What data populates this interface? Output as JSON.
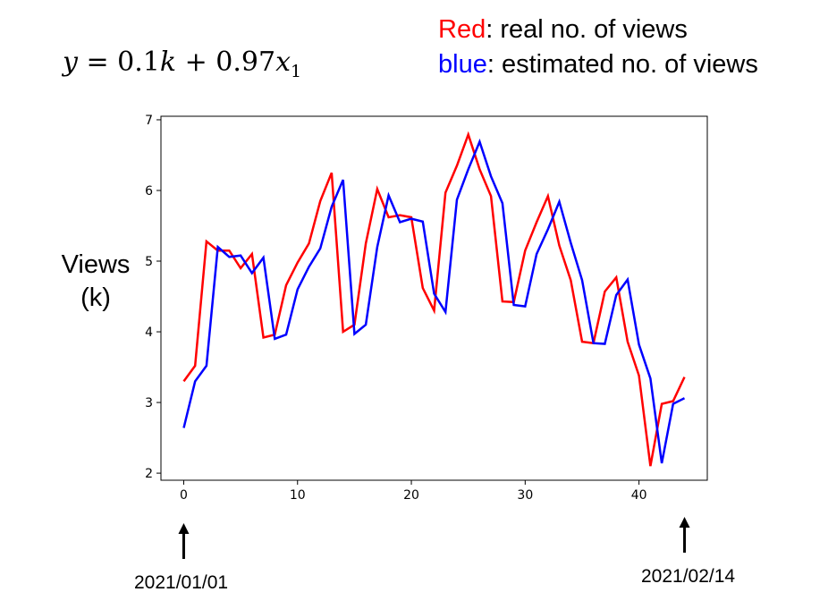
{
  "formula": {
    "y": "y",
    "eq": " = 0.1",
    "k": "k",
    "plus": " + 0.97",
    "x": "x",
    "sub": "1"
  },
  "legend": {
    "red_word": "Red",
    "red_rest": ": real no. of views",
    "blue_word": "blue",
    "blue_rest": ":  estimated no. of views"
  },
  "ylabel": {
    "line1": "Views",
    "line2": "(k)"
  },
  "dates": {
    "start": "2021/01/01",
    "end": "2021/02/14"
  },
  "colors": {
    "real": "#ff0000",
    "estimated": "#0000ff"
  },
  "chart_data": {
    "type": "line",
    "xlim": [
      -2,
      46
    ],
    "ylim": [
      1.9,
      7.05
    ],
    "xticks": [
      0,
      10,
      20,
      30,
      40
    ],
    "yticks": [
      2,
      3,
      4,
      5,
      6,
      7
    ],
    "grid": false,
    "series": [
      {
        "color": "#ff0000",
        "x": [
          0,
          1,
          2,
          3,
          4,
          5,
          6,
          7,
          8,
          9,
          10,
          11,
          12,
          13,
          14,
          15,
          16,
          17,
          18,
          19,
          20,
          21,
          22,
          23,
          24,
          25,
          26,
          27,
          28,
          29,
          30,
          31,
          32,
          33,
          34,
          35,
          36,
          37,
          38,
          39,
          40,
          41,
          42,
          43,
          44
        ],
        "values": [
          3.3,
          3.52,
          5.28,
          5.15,
          5.15,
          4.9,
          5.1,
          3.92,
          3.96,
          4.66,
          4.98,
          5.25,
          5.85,
          6.25,
          4.0,
          4.1,
          5.25,
          6.02,
          5.62,
          5.65,
          5.62,
          4.62,
          4.3,
          5.97,
          6.35,
          6.79,
          6.3,
          5.92,
          4.43,
          4.42,
          5.15,
          5.55,
          5.92,
          5.22,
          4.73,
          3.86,
          3.84,
          4.57,
          4.77,
          3.86,
          3.38,
          2.1,
          2.98,
          3.02,
          3.36
        ]
      },
      {
        "color": "#0000ff",
        "x": [
          0,
          1,
          2,
          3,
          4,
          5,
          6,
          7,
          8,
          9,
          10,
          11,
          12,
          13,
          14,
          15,
          16,
          17,
          18,
          19,
          20,
          21,
          22,
          23,
          24,
          25,
          26,
          27,
          28,
          29,
          30,
          31,
          32,
          33,
          34,
          35,
          36,
          37,
          38,
          39,
          40,
          41,
          42,
          43,
          44
        ],
        "values": [
          2.64,
          3.3,
          3.52,
          5.2,
          5.06,
          5.08,
          4.83,
          5.05,
          3.9,
          3.96,
          4.6,
          4.92,
          5.18,
          5.77,
          6.15,
          3.97,
          4.1,
          5.2,
          5.93,
          5.55,
          5.6,
          5.56,
          4.54,
          4.28,
          5.87,
          6.3,
          6.69,
          6.2,
          5.82,
          4.38,
          4.36,
          5.1,
          5.45,
          5.84,
          5.26,
          4.73,
          3.84,
          3.83,
          4.52,
          4.74,
          3.82,
          3.34,
          2.14,
          2.98,
          3.06
        ]
      }
    ]
  }
}
